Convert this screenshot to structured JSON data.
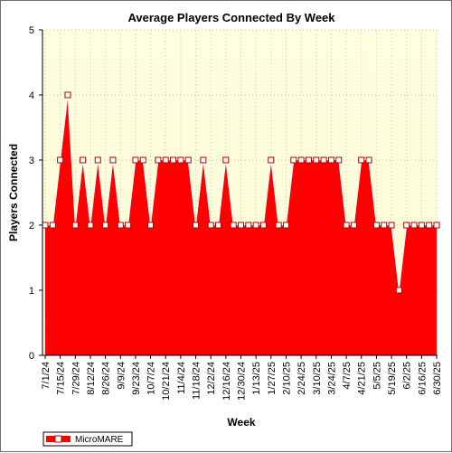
{
  "chart_data": {
    "type": "area",
    "title": "Average Players Connected By Week",
    "xlabel": "Week",
    "ylabel": "Players Connected",
    "ylim": [
      0,
      5
    ],
    "yticks": [
      0,
      1,
      2,
      3,
      4,
      5
    ],
    "grid": true,
    "legend_position": "bottom-left",
    "x_tick_labels": [
      "7/1/24",
      "7/15/24",
      "7/29/24",
      "8/12/24",
      "8/26/24",
      "9/9/24",
      "9/23/24",
      "10/7/24",
      "10/21/24",
      "11/4/24",
      "11/18/24",
      "12/2/24",
      "12/16/24",
      "12/30/24",
      "1/13/25",
      "1/27/25",
      "2/10/25",
      "2/24/25",
      "3/10/25",
      "3/24/25",
      "4/7/25",
      "4/21/25",
      "5/5/25",
      "5/19/25",
      "6/2/25",
      "6/16/25",
      "6/30/25"
    ],
    "x": [
      "7/1/24",
      "7/8/24",
      "7/15/24",
      "7/22/24",
      "7/29/24",
      "8/5/24",
      "8/12/24",
      "8/19/24",
      "8/26/24",
      "9/2/24",
      "9/9/24",
      "9/16/24",
      "9/23/24",
      "9/30/24",
      "10/7/24",
      "10/14/24",
      "10/21/24",
      "10/28/24",
      "11/4/24",
      "11/11/24",
      "11/18/24",
      "11/25/24",
      "12/2/24",
      "12/9/24",
      "12/16/24",
      "12/23/24",
      "12/30/24",
      "1/6/25",
      "1/13/25",
      "1/20/25",
      "1/27/25",
      "2/3/25",
      "2/10/25",
      "2/17/25",
      "2/24/25",
      "3/3/25",
      "3/10/25",
      "3/17/25",
      "3/24/25",
      "3/31/25",
      "4/7/25",
      "4/14/25",
      "4/21/25",
      "4/28/25",
      "5/5/25",
      "5/12/25",
      "5/19/25",
      "5/26/25",
      "6/2/25",
      "6/9/25",
      "6/16/25",
      "6/23/25",
      "6/30/25"
    ],
    "series": [
      {
        "name": "MicroMARE",
        "color": "#ff0000",
        "values": [
          2,
          2,
          3,
          4,
          2,
          3,
          2,
          3,
          2,
          3,
          2,
          2,
          3,
          3,
          2,
          3,
          3,
          3,
          3,
          3,
          2,
          3,
          2,
          2,
          3,
          2,
          2,
          2,
          2,
          2,
          3,
          2,
          2,
          3,
          3,
          3,
          3,
          3,
          3,
          3,
          2,
          2,
          3,
          3,
          2,
          2,
          2,
          1,
          2,
          2,
          2,
          2,
          2
        ]
      }
    ]
  },
  "colors": {
    "plot_background_top": "#ffffe0",
    "plot_background_bottom": "#fbfbd6",
    "area_fill": "#ff0000",
    "area_edge": "#ffffff",
    "marker_fill": "#ffffff",
    "marker_stroke": "#b00000",
    "grid": "#c8c8a0"
  }
}
